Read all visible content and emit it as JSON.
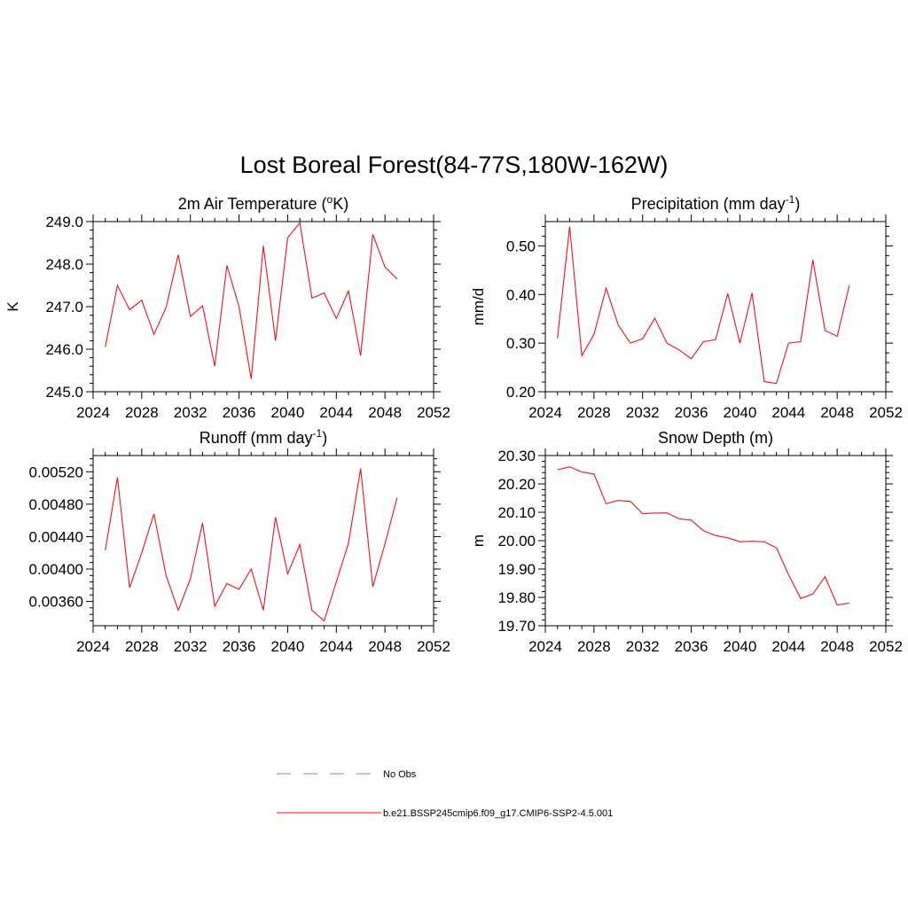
{
  "figure": {
    "title": "Lost Boreal Forest(84-77S,180W-162W)",
    "series_color": "#e8141a",
    "obs_color": "#9999ee"
  },
  "legend": {
    "obs_label": "No Obs",
    "model_label": "b.e21.BSSP245cmip6.f09_g17.CMIP6-SSP2-4.5.001"
  },
  "chart_data": [
    {
      "type": "line",
      "title": "2m Air Temperature",
      "title_unit_prefix": " (",
      "title_unit_sup": "o",
      "title_unit_suffix": "K)",
      "ylabel": "K",
      "xlim": [
        2024,
        2052
      ],
      "ylim": [
        245.0,
        249.0
      ],
      "x_ticks": [
        "2024",
        "2028",
        "2032",
        "2036",
        "2040",
        "2044",
        "2048",
        "2052"
      ],
      "y_ticks": [
        "245.0",
        "246.0",
        "247.0",
        "248.0",
        "249.0"
      ],
      "x": [
        2025,
        2026,
        2027,
        2028,
        2029,
        2030,
        2031,
        2032,
        2033,
        2034,
        2035,
        2036,
        2037,
        2038,
        2039,
        2040,
        2041,
        2042,
        2043,
        2044,
        2045,
        2046,
        2047,
        2048,
        2049
      ],
      "series": [
        {
          "values": [
            246.05,
            247.5,
            246.93,
            247.15,
            246.35,
            246.98,
            248.22,
            246.77,
            247.02,
            245.6,
            247.97,
            247.0,
            245.3,
            248.43,
            246.2,
            248.62,
            248.97,
            247.2,
            247.32,
            246.72,
            247.37,
            245.85,
            248.7,
            247.93,
            247.65
          ]
        }
      ]
    },
    {
      "type": "line",
      "title": "Precipitation (mm day",
      "title_unit_sup": "-1",
      "title_unit_suffix": ")",
      "ylabel": "mm/d",
      "xlim": [
        2024,
        2052
      ],
      "ylim": [
        0.2,
        0.55
      ],
      "x_ticks": [
        "2024",
        "2028",
        "2032",
        "2036",
        "2040",
        "2044",
        "2048",
        "2052"
      ],
      "y_ticks": [
        "0.20",
        "0.30",
        "0.40",
        "0.50"
      ],
      "x": [
        2025,
        2026,
        2027,
        2028,
        2029,
        2030,
        2031,
        2032,
        2033,
        2034,
        2035,
        2036,
        2037,
        2038,
        2039,
        2040,
        2041,
        2042,
        2043,
        2044,
        2045,
        2046,
        2047,
        2048,
        2049
      ],
      "series": [
        {
          "values": [
            0.31,
            0.54,
            0.274,
            0.318,
            0.413,
            0.337,
            0.3,
            0.309,
            0.351,
            0.3,
            0.286,
            0.268,
            0.303,
            0.307,
            0.402,
            0.3,
            0.403,
            0.221,
            0.217,
            0.3,
            0.303,
            0.471,
            0.326,
            0.314,
            0.419
          ]
        }
      ]
    },
    {
      "type": "line",
      "title": "Runoff (mm day",
      "title_unit_sup": "-1",
      "title_unit_suffix": ")",
      "ylabel": "",
      "xlim": [
        2024,
        2052
      ],
      "ylim": [
        0.0033,
        0.0054
      ],
      "x_ticks": [
        "2024",
        "2028",
        "2032",
        "2036",
        "2040",
        "2044",
        "2048",
        "2052"
      ],
      "y_ticks": [
        "0.00360",
        "0.00400",
        "0.00440",
        "0.00480",
        "0.00520"
      ],
      "x": [
        2025,
        2026,
        2027,
        2028,
        2029,
        2030,
        2031,
        2032,
        2033,
        2034,
        2035,
        2036,
        2037,
        2038,
        2039,
        2040,
        2041,
        2042,
        2043,
        2044,
        2045,
        2046,
        2047,
        2048,
        2049
      ],
      "series": [
        {
          "values": [
            0.00423,
            0.00513,
            0.00377,
            0.0042,
            0.00468,
            0.00392,
            0.00349,
            0.00388,
            0.00457,
            0.00354,
            0.00382,
            0.00375,
            0.004,
            0.00349,
            0.00464,
            0.00394,
            0.0043,
            0.00349,
            0.00336,
            0.00384,
            0.00432,
            0.00524,
            0.00378,
            0.00431,
            0.00488
          ]
        }
      ]
    },
    {
      "type": "line",
      "title": "Snow Depth (m)",
      "ylabel": "m",
      "xlim": [
        2024,
        2052
      ],
      "ylim": [
        19.7,
        20.3
      ],
      "x_ticks": [
        "2024",
        "2028",
        "2032",
        "2036",
        "2040",
        "2044",
        "2048",
        "2052"
      ],
      "y_ticks": [
        "19.70",
        "19.80",
        "19.90",
        "20.00",
        "20.10",
        "20.20",
        "20.30"
      ],
      "x": [
        2025,
        2026,
        2027,
        2028,
        2029,
        2030,
        2031,
        2032,
        2033,
        2034,
        2035,
        2036,
        2037,
        2038,
        2039,
        2040,
        2041,
        2042,
        2043,
        2044,
        2045,
        2046,
        2047,
        2048,
        2049
      ],
      "series": [
        {
          "values": [
            20.25,
            20.26,
            20.242,
            20.235,
            20.13,
            20.142,
            20.138,
            20.095,
            20.097,
            20.098,
            20.077,
            20.072,
            20.035,
            20.018,
            20.01,
            19.996,
            19.998,
            19.996,
            19.975,
            19.88,
            19.796,
            19.812,
            19.873,
            19.773,
            19.78
          ]
        }
      ]
    }
  ]
}
